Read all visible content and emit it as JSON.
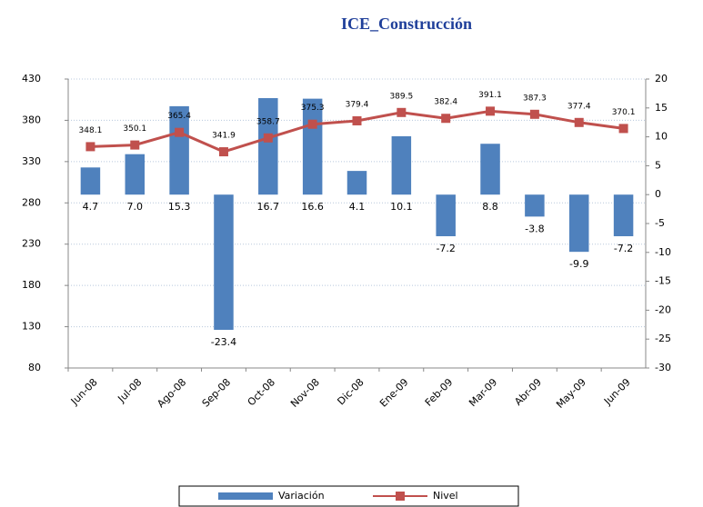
{
  "chart_data": {
    "type": "bar-line",
    "title": "ICE_Construcción",
    "categories": [
      "Jun-08",
      "Jul-08",
      "Ago-08",
      "Sep-08",
      "Oct-08",
      "Nov-08",
      "Dic-08",
      "Ene-09",
      "Feb-09",
      "Mar-09",
      "Abr-09",
      "May-09",
      "Jun-09"
    ],
    "series": [
      {
        "name": "Variación",
        "type": "bar",
        "axis": "y2",
        "color": "#4f81bd",
        "values": [
          4.7,
          7.0,
          15.3,
          -23.4,
          16.7,
          16.6,
          4.1,
          10.1,
          -7.2,
          8.8,
          -3.8,
          -9.9,
          -7.2
        ],
        "value_labels": [
          "4.7",
          "7.0",
          "15.3",
          "-23.4",
          "16.7",
          "16.6",
          "4.1",
          "10.1",
          "-7.2",
          "8.8",
          "-3.8",
          "-9.9",
          "-7.2"
        ]
      },
      {
        "name": "Nivel",
        "type": "line",
        "color": "#c0504d",
        "values": [
          348.1,
          350.1,
          365.4,
          341.9,
          358.7,
          375.3,
          379.4,
          389.5,
          382.4,
          391.1,
          387.3,
          377.4,
          370.1
        ]
      }
    ],
    "ylim": [
      80,
      430
    ],
    "yticks": [
      80,
      130,
      180,
      230,
      280,
      330,
      380,
      430
    ],
    "y2lim": [
      -30,
      20
    ],
    "y2ticks": [
      20,
      15,
      10,
      5,
      0,
      -5,
      -10,
      -15,
      -20,
      -25,
      -30
    ],
    "grid": true,
    "legend": "bottom"
  }
}
